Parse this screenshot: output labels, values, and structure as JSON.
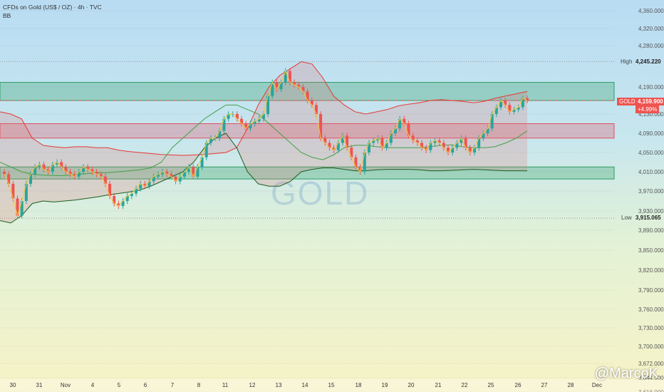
{
  "header": {
    "title": "CFDs on Gold (US$ / OZ) · 4h · TVC",
    "indicator": "BB"
  },
  "watermark": "GOLD",
  "credit": "@MarcoK",
  "price_labels": {
    "high_label": "High",
    "high_value": "4,245.220",
    "low_label": "Low",
    "low_value": "3,915.065",
    "symbol": "GOLD",
    "last_price": "4,159.900",
    "change": "+4.99%"
  },
  "colors": {
    "up": "#26a69a",
    "down": "#ef5350",
    "upper_band": "#e53935",
    "mid_band": "#43a047",
    "lower_band": "#1b5e20",
    "zone_green": "#2e9e63",
    "zone_red": "#e05060",
    "zigzag": "#f5c542"
  },
  "chart_data": {
    "type": "candlestick",
    "title": "CFDs on Gold (US$ / OZ) · 4h · TVC",
    "y_axis": {
      "ticks": [
        "4,360.000",
        "4,320.000",
        "4,280.000",
        "4,190.000",
        "4,130.000",
        "4,090.000",
        "4,050.000",
        "4,010.000",
        "3,970.000",
        "3,930.000",
        "3,890.000",
        "3,850.000",
        "3,820.000",
        "3,790.000",
        "3,760.000",
        "3,730.000",
        "3,700.000",
        "3,672.000",
        "3,644.000",
        "3,616.000"
      ]
    },
    "x_axis": {
      "ticks": [
        "30",
        "31",
        "Nov",
        "4",
        "5",
        "6",
        "7",
        "8",
        "11",
        "12",
        "13",
        "14",
        "15",
        "18",
        "19",
        "20",
        "21",
        "22",
        "25",
        "26",
        "27",
        "28",
        "Dec"
      ]
    },
    "zones": [
      {
        "type": "resistance",
        "from": 4160,
        "to": 4200
      },
      {
        "type": "resistance",
        "from": 4080,
        "to": 4110
      },
      {
        "type": "support",
        "from": 3995,
        "to": 4020
      }
    ],
    "close_series": [
      4005,
      3985,
      3955,
      3920,
      3950,
      3985,
      4005,
      4020,
      4025,
      4015,
      4010,
      4025,
      4030,
      4020,
      4010,
      4005,
      4000,
      4010,
      4020,
      4015,
      4010,
      4005,
      4000,
      3985,
      3960,
      3945,
      3940,
      3950,
      3960,
      3965,
      3975,
      3985,
      3980,
      3990,
      4000,
      4005,
      4010,
      4005,
      4000,
      3990,
      4000,
      4010,
      4020,
      4000,
      4020,
      4040,
      4070,
      4080,
      4080,
      4095,
      4120,
      4130,
      4130,
      4120,
      4110,
      4100,
      4110,
      4115,
      4120,
      4130,
      4170,
      4200,
      4185,
      4200,
      4225,
      4200,
      4195,
      4190,
      4180,
      4160,
      4150,
      4130,
      4080,
      4070,
      4060,
      4055,
      4070,
      4085,
      4060,
      4040,
      4020,
      4010,
      4050,
      4070,
      4075,
      4080,
      4060,
      4070,
      4090,
      4100,
      4120,
      4110,
      4085,
      4075,
      4070,
      4060,
      4055,
      4070,
      4075,
      4070,
      4060,
      4050,
      4060,
      4070,
      4080,
      4060,
      4050,
      4060,
      4080,
      4090,
      4100,
      4130,
      4145,
      4160,
      4150,
      4135,
      4140,
      4145,
      4165,
      4160
    ],
    "upper_band": [
      4135,
      4130,
      4120,
      4080,
      4065,
      4062,
      4060,
      4062,
      4062,
      4060,
      4060,
      4055,
      4052,
      4050,
      4048,
      4046,
      4045,
      4044,
      4045,
      4046,
      4048,
      4050,
      4060,
      4100,
      4150,
      4190,
      4215,
      4230,
      4245,
      4240,
      4210,
      4170,
      4150,
      4135,
      4130,
      4135,
      4140,
      4148,
      4152,
      4155,
      4160,
      4162,
      4160,
      4158,
      4155,
      4158,
      4165,
      4170,
      4175,
      4180
    ],
    "mid_band": [
      4030,
      4020,
      4010,
      4005,
      4003,
      4002,
      4002,
      4004,
      4006,
      4008,
      4008,
      4010,
      4012,
      4014,
      4018,
      4030,
      4060,
      4080,
      4100,
      4120,
      4135,
      4150,
      4150,
      4140,
      4130,
      4110,
      4090,
      4070,
      4050,
      4040,
      4035,
      4045,
      4060,
      4065,
      4065,
      4062,
      4060,
      4060,
      4060,
      4060,
      4062,
      4065,
      4066,
      4062,
      4060,
      4060,
      4062,
      4070,
      4080,
      4095
    ],
    "lower_band": [
      3910,
      3905,
      3920,
      3945,
      3950,
      3948,
      3950,
      3952,
      3955,
      3958,
      3962,
      3965,
      3968,
      3972,
      3980,
      3990,
      4000,
      4010,
      4030,
      4060,
      4080,
      4090,
      4060,
      4010,
      3985,
      3980,
      3980,
      3990,
      4010,
      4015,
      4018,
      4018,
      4015,
      4012,
      4012,
      4014,
      4015,
      4015,
      4015,
      4014,
      4012,
      4012,
      4013,
      4014,
      4015,
      4014,
      4013,
      4012,
      4012,
      4012
    ]
  }
}
